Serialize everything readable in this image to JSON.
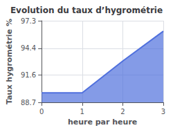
{
  "chart_data": {
    "type": "area",
    "title": "Evolution du taux d’hygrométrie",
    "xlabel": "heure par heure",
    "ylabel": "Taux hygrométrie %",
    "x": [
      0,
      1,
      2,
      3
    ],
    "values": [
      89.7,
      89.7,
      93.05,
      96.2
    ],
    "xlim": [
      0,
      3
    ],
    "xticks": [
      0,
      1,
      2,
      3
    ],
    "ylim": [
      88.7,
      97.3
    ],
    "yticks": [
      88.7,
      91.6,
      94.4,
      97.3
    ],
    "grid": true
  }
}
